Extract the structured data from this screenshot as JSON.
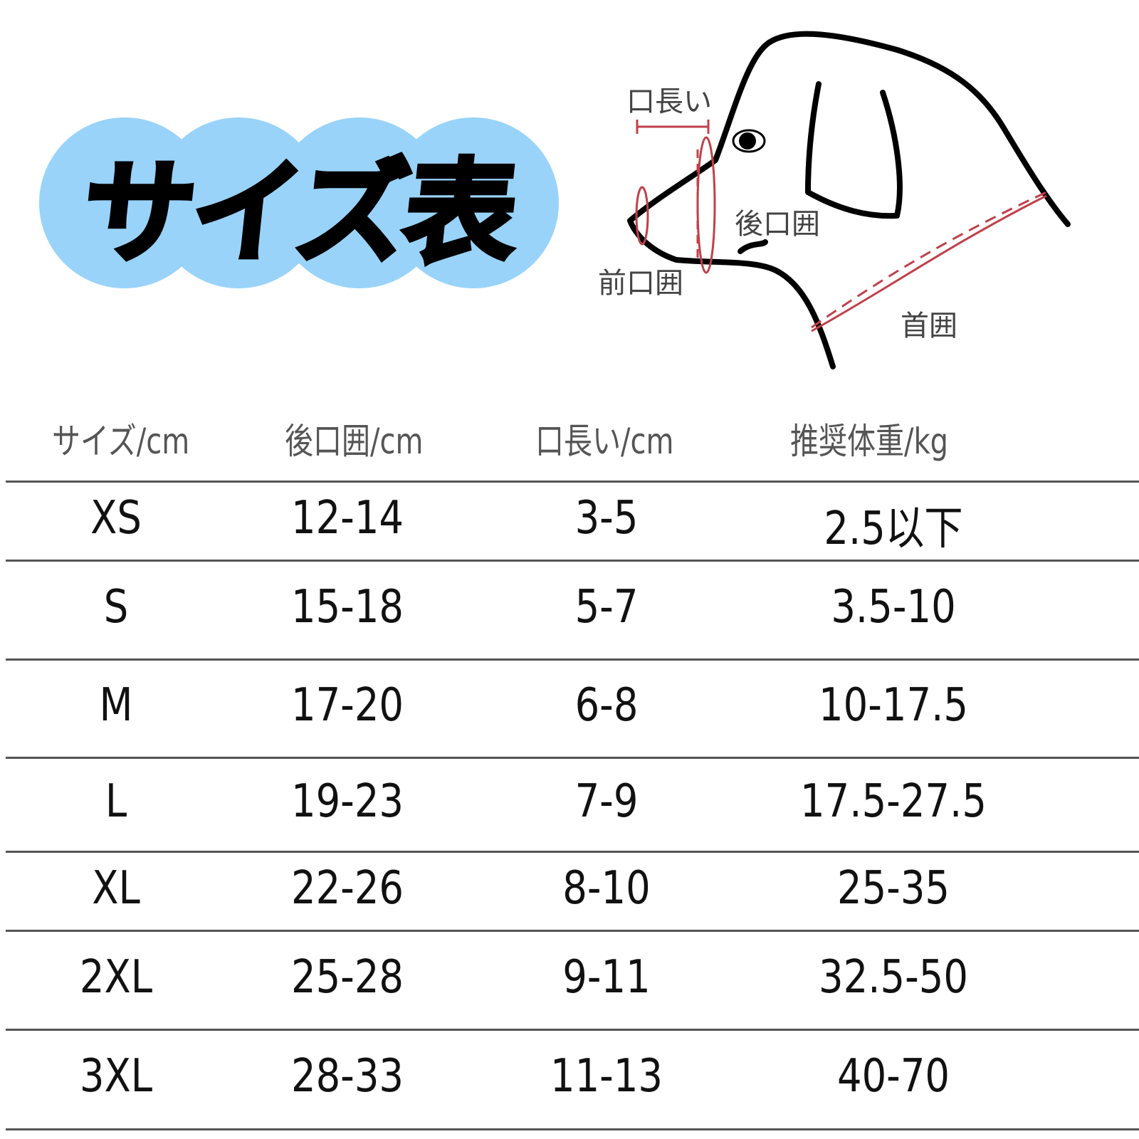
{
  "title": "サイズ表",
  "colors": {
    "badge": "#99d3fa",
    "measure_line": "#c0404a",
    "rule": "#555555"
  },
  "diagram": {
    "labels": {
      "mouth_length": "口長い",
      "rear_mouth_circumference": "後口囲",
      "front_mouth_circumference": "前口囲",
      "neck_circumference": "首囲"
    }
  },
  "table": {
    "headers": [
      "サイズ/cm",
      "後口囲/cm",
      "口長い/cm",
      "推奨体重/kg"
    ],
    "rows": [
      [
        "XS",
        "12-14",
        "3-5",
        "2.5以下"
      ],
      [
        "S",
        "15-18",
        "5-7",
        "3.5-10"
      ],
      [
        "M",
        "17-20",
        "6-8",
        "10-17.5"
      ],
      [
        "L",
        "19-23",
        "7-9",
        "17.5-27.5"
      ],
      [
        "XL",
        "22-26",
        "8-10",
        "25-35"
      ],
      [
        "2XL",
        "25-28",
        "9-11",
        "32.5-50"
      ],
      [
        "3XL",
        "28-33",
        "11-13",
        "40-70"
      ]
    ]
  }
}
